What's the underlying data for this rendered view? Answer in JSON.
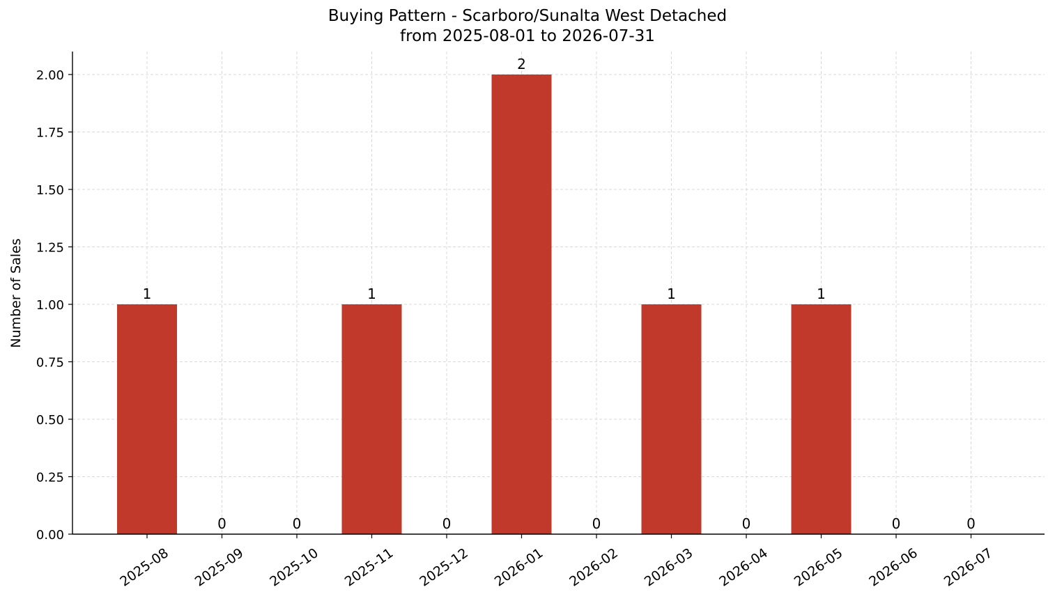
{
  "chart_data": {
    "type": "bar",
    "title": "Buying Pattern - Scarboro/Sunalta West Detached",
    "subtitle": "from 2025-08-01 to 2026-07-31",
    "xlabel": "",
    "ylabel": "Number of Sales",
    "categories": [
      "2025-08",
      "2025-09",
      "2025-10",
      "2025-11",
      "2025-12",
      "2026-01",
      "2026-02",
      "2026-03",
      "2026-04",
      "2026-05",
      "2026-06",
      "2026-07"
    ],
    "values": [
      1,
      0,
      0,
      1,
      0,
      2,
      0,
      1,
      0,
      1,
      0,
      0
    ],
    "data_labels": [
      "1",
      "0",
      "0",
      "1",
      "0",
      "2",
      "0",
      "1",
      "0",
      "1",
      "0",
      "0"
    ],
    "ylim": [
      0,
      2.1
    ],
    "yticks": [
      0,
      0.25,
      0.5,
      0.75,
      1.0,
      1.25,
      1.5,
      1.75,
      2.0
    ],
    "ytick_labels": [
      "0.00",
      "0.25",
      "0.50",
      "0.75",
      "1.00",
      "1.25",
      "1.50",
      "1.75",
      "2.00"
    ],
    "grid": true,
    "bar_color": "#c0392b",
    "grid_color": "#d8d8d8"
  }
}
